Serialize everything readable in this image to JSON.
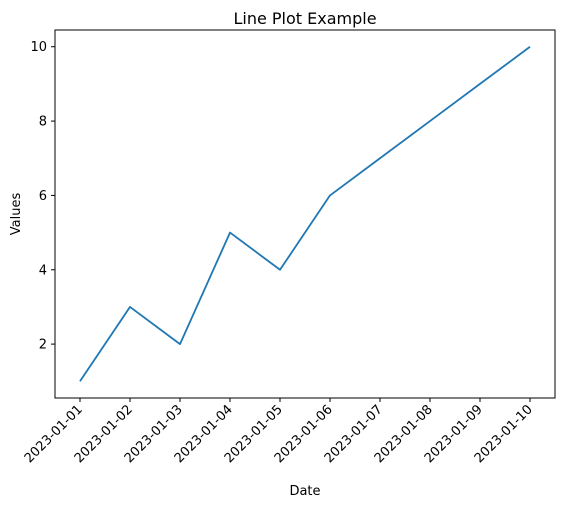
{
  "chart_data": {
    "type": "line",
    "title": "Line Plot Example",
    "xlabel": "Date",
    "ylabel": "Values",
    "x": [
      "2023-01-01",
      "2023-01-02",
      "2023-01-03",
      "2023-01-04",
      "2023-01-05",
      "2023-01-06",
      "2023-01-07",
      "2023-01-08",
      "2023-01-09",
      "2023-01-10"
    ],
    "series": [
      {
        "values": [
          1,
          3,
          2,
          5,
          4,
          6,
          7,
          8,
          9,
          10
        ],
        "color": "#1f77b4"
      }
    ],
    "yticks": [
      2,
      4,
      6,
      8,
      10
    ],
    "ylim": [
      0.55,
      10.45
    ],
    "grid": false,
    "legend": "none"
  }
}
